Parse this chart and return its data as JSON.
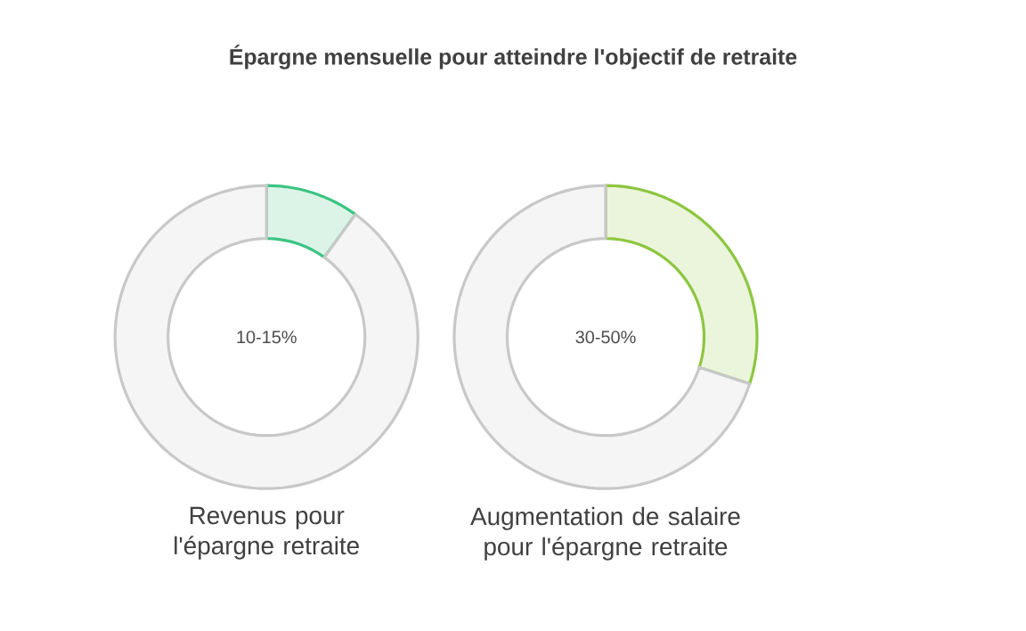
{
  "chart_data": [
    {
      "type": "donut",
      "title": "Épargne mensuelle pour atteindre l'objectif de retraite",
      "xlabel": "Revenus pour l'épargne retraite",
      "annotations": [
        "10-15%"
      ],
      "categories": [
        null,
        null
      ],
      "values": [
        10,
        90
      ],
      "colors": [
        "#3cc482",
        "#c8c8c8"
      ]
    },
    {
      "type": "donut",
      "xlabel": "Augmentation de salaire pour l'épargne retraite",
      "annotations": [
        "30-50%"
      ],
      "categories": [
        null,
        null
      ],
      "values": [
        30,
        70
      ],
      "colors": [
        "#8dc63f",
        "#c8c8c8"
      ]
    }
  ]
}
